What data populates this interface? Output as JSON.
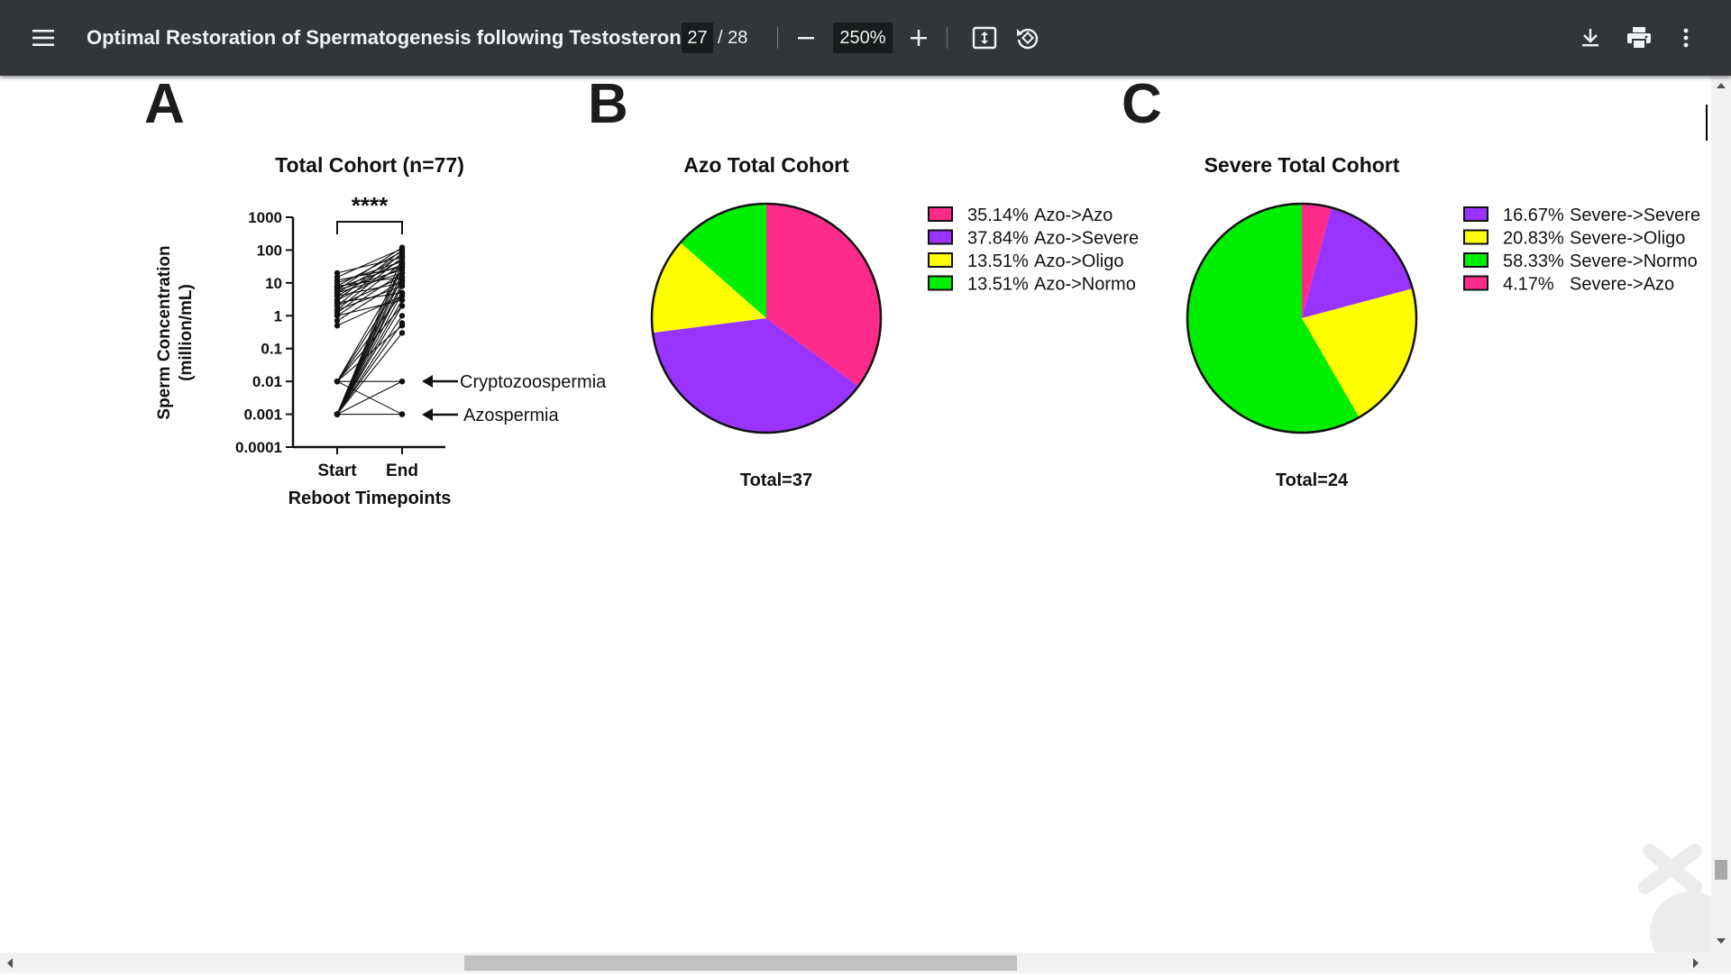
{
  "toolbar": {
    "title": "Optimal Restoration of Spermatogenesis following Testosterone ...",
    "page_current": "27",
    "page_total": "/ 28",
    "zoom": "250%",
    "icons": [
      "menu-icon",
      "zoom-out-icon",
      "zoom-in-icon",
      "fit-page-icon",
      "rotate-icon",
      "download-icon",
      "print-icon",
      "more-vert-icon"
    ]
  },
  "figure": {
    "panel_a": {
      "letter": "A",
      "title": "Total Cohort  (n=77)",
      "significance": "****",
      "ylabel_line1": "Sperm Concentration",
      "ylabel_line2": "(million/mL)",
      "xlabel": "Reboot Timepoints",
      "yticks": [
        "1000",
        "100",
        "10",
        "1",
        "0.1",
        "0.01",
        "0.001",
        "0.0001"
      ],
      "xticks": [
        "Start",
        "End"
      ],
      "annotation_crypto": "Cryptozoospermia",
      "annotation_azo": "Azospermia"
    },
    "panel_b": {
      "letter": "B",
      "title": "Azo Total Cohort",
      "total": "Total=37",
      "legend": [
        {
          "pct": "35.14%",
          "label": "Azo->Azo",
          "color": "#ff2b8a"
        },
        {
          "pct": "37.84%",
          "label": "Azo->Severe",
          "color": "#9933ff"
        },
        {
          "pct": "13.51%",
          "label": "Azo->Oligo",
          "color": "#ffff00"
        },
        {
          "pct": "13.51%",
          "label": "Azo->Normo",
          "color": "#00ee00"
        }
      ]
    },
    "panel_c": {
      "letter": "C",
      "title": "Severe Total Cohort",
      "total": "Total=24",
      "legend": [
        {
          "pct": "16.67%",
          "label": "Severe->Severe",
          "color": "#9933ff"
        },
        {
          "pct": "20.83%",
          "label": "Severe->Oligo",
          "color": "#ffff00"
        },
        {
          "pct": "58.33%",
          "label": "Severe->Normo",
          "color": "#00ee00"
        },
        {
          "pct": "4.17%",
          "label": "Severe->Azo",
          "color": "#ff2b8a"
        }
      ]
    }
  },
  "chart_data": [
    {
      "type": "line",
      "title": "Total Cohort  (n=77)",
      "xlabel": "Reboot Timepoints",
      "ylabel": "Sperm Concentration (million/mL)",
      "y_scale": "log",
      "ylim": [
        0.0001,
        1000
      ],
      "categories": [
        "Start",
        "End"
      ],
      "series": [
        {
          "values": [
            0.001,
            0.001
          ]
        },
        {
          "values": [
            0.001,
            0.01
          ]
        },
        {
          "values": [
            0.01,
            0.001
          ]
        },
        {
          "values": [
            0.01,
            0.01
          ]
        },
        {
          "values": [
            0.001,
            0.3
          ]
        },
        {
          "values": [
            0.001,
            0.6
          ]
        },
        {
          "values": [
            0.001,
            1
          ]
        },
        {
          "values": [
            0.001,
            2
          ]
        },
        {
          "values": [
            0.001,
            3
          ]
        },
        {
          "values": [
            0.001,
            5
          ]
        },
        {
          "values": [
            0.001,
            8
          ]
        },
        {
          "values": [
            0.001,
            10
          ]
        },
        {
          "values": [
            0.001,
            15
          ]
        },
        {
          "values": [
            0.001,
            20
          ]
        },
        {
          "values": [
            0.001,
            30
          ]
        },
        {
          "values": [
            0.001,
            40
          ]
        },
        {
          "values": [
            0.001,
            60
          ]
        },
        {
          "values": [
            0.01,
            0.5
          ]
        },
        {
          "values": [
            0.01,
            2
          ]
        },
        {
          "values": [
            0.01,
            5
          ]
        },
        {
          "values": [
            0.01,
            12
          ]
        },
        {
          "values": [
            0.01,
            25
          ]
        },
        {
          "values": [
            0.5,
            4
          ]
        },
        {
          "values": [
            0.7,
            12
          ]
        },
        {
          "values": [
            1,
            3
          ]
        },
        {
          "values": [
            1,
            20
          ]
        },
        {
          "values": [
            1.2,
            40
          ]
        },
        {
          "values": [
            1.5,
            8
          ]
        },
        {
          "values": [
            1.5,
            60
          ]
        },
        {
          "values": [
            2,
            15
          ]
        },
        {
          "values": [
            2,
            80
          ]
        },
        {
          "values": [
            2.5,
            5
          ]
        },
        {
          "values": [
            3,
            30
          ]
        },
        {
          "values": [
            3,
            100
          ]
        },
        {
          "values": [
            4,
            10
          ]
        },
        {
          "values": [
            4,
            50
          ]
        },
        {
          "values": [
            5,
            20
          ]
        },
        {
          "values": [
            5,
            70
          ]
        },
        {
          "values": [
            6,
            25
          ]
        },
        {
          "values": [
            6,
            120
          ]
        },
        {
          "values": [
            7,
            35
          ]
        },
        {
          "values": [
            8,
            15
          ]
        },
        {
          "values": [
            8,
            90
          ]
        },
        {
          "values": [
            10,
            45
          ]
        },
        {
          "values": [
            12,
            30
          ]
        },
        {
          "values": [
            15,
            110
          ]
        },
        {
          "values": [
            20,
            60
          ]
        }
      ]
    },
    {
      "type": "pie",
      "title": "Azo Total Cohort",
      "categories": [
        "Azo->Azo",
        "Azo->Severe",
        "Azo->Oligo",
        "Azo->Normo"
      ],
      "values": [
        35.14,
        37.84,
        13.51,
        13.51
      ],
      "colors": [
        "#ff2b8a",
        "#9933ff",
        "#ffff00",
        "#00ee00"
      ],
      "start_angle_deg": 0,
      "direction": "clockwise",
      "legend": "right",
      "total": "Total=37"
    },
    {
      "type": "pie",
      "title": "Severe Total Cohort",
      "categories": [
        "Severe->Severe",
        "Severe->Oligo",
        "Severe->Normo",
        "Severe->Azo"
      ],
      "values": [
        16.67,
        20.83,
        58.33,
        4.17
      ],
      "colors": [
        "#9933ff",
        "#ffff00",
        "#00ee00",
        "#ff2b8a"
      ],
      "start_angle_deg": 15,
      "direction": "clockwise",
      "legend": "right",
      "total": "Total=24"
    }
  ]
}
